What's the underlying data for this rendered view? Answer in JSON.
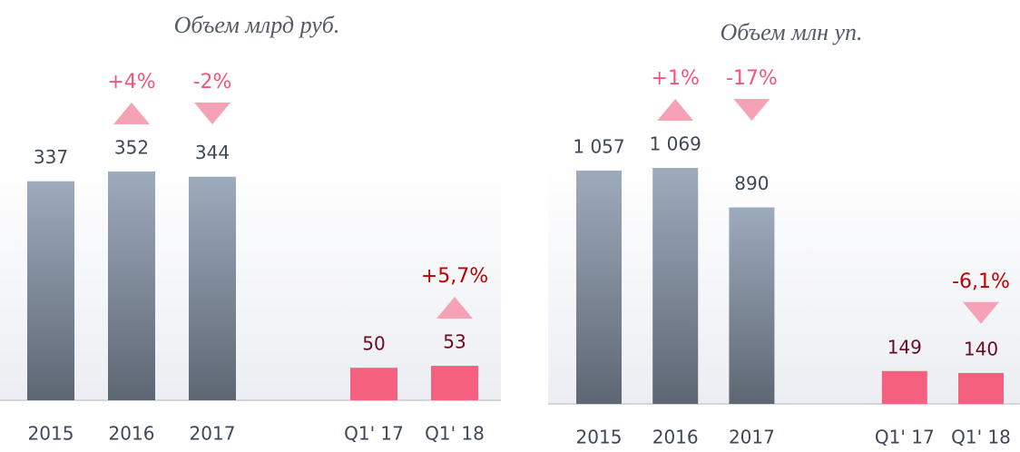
{
  "chart_data": [
    {
      "type": "bar",
      "title": "Объем млрд руб.",
      "categories": [
        "2015",
        "2016",
        "2017",
        null,
        "Q1' 17",
        "Q1' 18"
      ],
      "values": [
        337,
        352,
        344,
        null,
        50,
        53
      ],
      "colors": [
        "#9eabbd",
        "#9eabbd",
        "#9eabbd",
        null,
        "#f4607e",
        "#f4607e"
      ],
      "value_label_colors": [
        "#3f4858",
        "#3f4858",
        "#3f4858",
        null,
        "#6a0a20",
        "#6a0a20"
      ],
      "change_labels": [
        null,
        "+4%",
        "-2%",
        null,
        null,
        "+5,7%"
      ],
      "change_directions": [
        null,
        "up",
        "down",
        null,
        null,
        "up"
      ],
      "change_label_colors": [
        null,
        "#f0577a",
        "#f0577a",
        null,
        null,
        "#c00000"
      ]
    },
    {
      "type": "bar",
      "title": "Объем млн уп.",
      "categories": [
        "2015",
        "2016",
        "2017",
        null,
        "Q1' 17",
        "Q1' 18"
      ],
      "values": [
        1057,
        1069,
        890,
        null,
        149,
        140
      ],
      "value_labels": [
        "1 057",
        "1 069",
        "890",
        null,
        "149",
        "140"
      ],
      "colors": [
        "#9eabbd",
        "#9eabbd",
        "#9eabbd",
        null,
        "#f4607e",
        "#f4607e"
      ],
      "value_label_colors": [
        "#3f4858",
        "#3f4858",
        "#3f4858",
        null,
        "#6a0a20",
        "#6a0a20"
      ],
      "change_labels": [
        null,
        "+1%",
        "-17%",
        null,
        null,
        "-6,1%"
      ],
      "change_directions": [
        null,
        "up",
        "down",
        null,
        null,
        "down"
      ],
      "change_label_colors": [
        null,
        "#f0577a",
        "#f0577a",
        null,
        null,
        "#c00000"
      ]
    }
  ]
}
